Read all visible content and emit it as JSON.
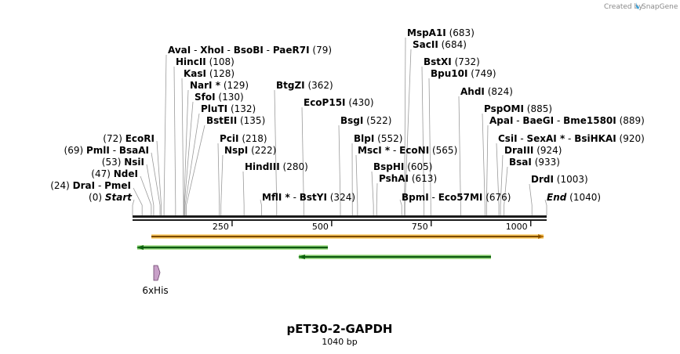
{
  "credit": {
    "text": "Created by",
    "brand": "SnapGene"
  },
  "plasmid": {
    "name": "pET30-2-GAPDH",
    "length_label": "1040 bp",
    "length": 1040
  },
  "axis": {
    "ticks": [
      250,
      500,
      750,
      1000
    ]
  },
  "colors": {
    "backbone": "#1a1a1a",
    "orange": "#f0a000",
    "green": "#1e9e1e",
    "his": "#c8a0c8"
  },
  "features": {
    "his_tag_label": "6xHis"
  },
  "site_labels": [
    {
      "segs": [
        {
          "t": "Start",
          "s": "end"
        }
      ],
      "pos_text": "(0)",
      "side": "left"
    },
    {
      "segs": [
        {
          "t": "DraI",
          "s": "en"
        },
        {
          "t": " - ",
          "s": "pos"
        },
        {
          "t": "PmeI",
          "s": "en"
        }
      ],
      "pos_text": "(24)",
      "side": "left"
    },
    {
      "segs": [
        {
          "t": "NdeI",
          "s": "en"
        }
      ],
      "pos_text": "(47)",
      "side": "left"
    },
    {
      "segs": [
        {
          "t": "NsiI",
          "s": "en"
        }
      ],
      "pos_text": "(53)",
      "side": "left"
    },
    {
      "segs": [
        {
          "t": "PmlI",
          "s": "en"
        },
        {
          "t": " - ",
          "s": "pos"
        },
        {
          "t": "BsaAI",
          "s": "en"
        }
      ],
      "pos_text": "(69)",
      "side": "left"
    },
    {
      "segs": [
        {
          "t": "EcoRI",
          "s": "en"
        }
      ],
      "pos_text": "(72)",
      "side": "left"
    },
    {
      "segs": [
        {
          "t": "AvaI",
          "s": "en"
        },
        {
          "t": " - ",
          "s": "pos"
        },
        {
          "t": "XhoI",
          "s": "en"
        },
        {
          "t": " - ",
          "s": "pos"
        },
        {
          "t": "BsoBI",
          "s": "en"
        },
        {
          "t": " - ",
          "s": "pos"
        },
        {
          "t": "PaeR7I",
          "s": "en"
        }
      ],
      "pos_text": "(79)",
      "side": "right"
    },
    {
      "segs": [
        {
          "t": "HincII",
          "s": "en"
        }
      ],
      "pos_text": "(108)",
      "side": "right"
    },
    {
      "segs": [
        {
          "t": "KasI",
          "s": "en"
        }
      ],
      "pos_text": "(128)",
      "side": "right"
    },
    {
      "segs": [
        {
          "t": "NarI *",
          "s": "en"
        }
      ],
      "pos_text": "(129)",
      "side": "right"
    },
    {
      "segs": [
        {
          "t": "SfoI",
          "s": "en"
        }
      ],
      "pos_text": "(130)",
      "side": "right"
    },
    {
      "segs": [
        {
          "t": "PluTI",
          "s": "en"
        }
      ],
      "pos_text": "(132)",
      "side": "right"
    },
    {
      "segs": [
        {
          "t": "BstEII",
          "s": "en"
        }
      ],
      "pos_text": "(135)",
      "side": "right"
    },
    {
      "segs": [
        {
          "t": "PciI",
          "s": "en"
        }
      ],
      "pos_text": "(218)",
      "side": "right"
    },
    {
      "segs": [
        {
          "t": "NspI",
          "s": "en"
        }
      ],
      "pos_text": "(222)",
      "side": "right"
    },
    {
      "segs": [
        {
          "t": "HindIII",
          "s": "en"
        }
      ],
      "pos_text": "(280)",
      "side": "right"
    },
    {
      "segs": [
        {
          "t": "MflI *",
          "s": "en"
        },
        {
          "t": " - ",
          "s": "pos"
        },
        {
          "t": "BstYI",
          "s": "en"
        }
      ],
      "pos_text": "(324)",
      "side": "right"
    },
    {
      "segs": [
        {
          "t": "BtgZI",
          "s": "en"
        }
      ],
      "pos_text": "(362)",
      "side": "right"
    },
    {
      "segs": [
        {
          "t": "EcoP15I",
          "s": "en"
        }
      ],
      "pos_text": "(430)",
      "side": "right"
    },
    {
      "segs": [
        {
          "t": "BsgI",
          "s": "en"
        }
      ],
      "pos_text": "(522)",
      "side": "right"
    },
    {
      "segs": [
        {
          "t": "BlpI",
          "s": "en"
        }
      ],
      "pos_text": "(552)",
      "side": "right"
    },
    {
      "segs": [
        {
          "t": "MscI *",
          "s": "en"
        },
        {
          "t": " - ",
          "s": "pos"
        },
        {
          "t": "EcoNI",
          "s": "en"
        }
      ],
      "pos_text": "(565)",
      "side": "right"
    },
    {
      "segs": [
        {
          "t": "BspHI",
          "s": "en"
        }
      ],
      "pos_text": "(605)",
      "side": "right"
    },
    {
      "segs": [
        {
          "t": "PshAI",
          "s": "en"
        }
      ],
      "pos_text": "(613)",
      "side": "right"
    },
    {
      "segs": [
        {
          "t": "BpmI",
          "s": "en"
        },
        {
          "t": " - ",
          "s": "pos"
        },
        {
          "t": "Eco57MI",
          "s": "en"
        }
      ],
      "pos_text": "(676)",
      "side": "right"
    },
    {
      "segs": [
        {
          "t": "MspA1I",
          "s": "en"
        }
      ],
      "pos_text": "(683)",
      "side": "right"
    },
    {
      "segs": [
        {
          "t": "SacII",
          "s": "en"
        }
      ],
      "pos_text": "(684)",
      "side": "right"
    },
    {
      "segs": [
        {
          "t": "BstXI",
          "s": "en"
        }
      ],
      "pos_text": "(732)",
      "side": "right"
    },
    {
      "segs": [
        {
          "t": "Bpu10I",
          "s": "en"
        }
      ],
      "pos_text": "(749)",
      "side": "right"
    },
    {
      "segs": [
        {
          "t": "AhdI",
          "s": "en"
        }
      ],
      "pos_text": "(824)",
      "side": "right"
    },
    {
      "segs": [
        {
          "t": "PspOMI",
          "s": "en"
        }
      ],
      "pos_text": "(885)",
      "side": "right"
    },
    {
      "segs": [
        {
          "t": "ApaI",
          "s": "en"
        },
        {
          "t": " - ",
          "s": "pos"
        },
        {
          "t": "BaeGI",
          "s": "en"
        },
        {
          "t": " - ",
          "s": "pos"
        },
        {
          "t": "Bme1580I",
          "s": "en"
        }
      ],
      "pos_text": "(889)",
      "side": "right"
    },
    {
      "segs": [
        {
          "t": "CsiI",
          "s": "en"
        },
        {
          "t": " - ",
          "s": "pos"
        },
        {
          "t": "SexAI *",
          "s": "en"
        },
        {
          "t": " - ",
          "s": "pos"
        },
        {
          "t": "BsiHKAI",
          "s": "en"
        }
      ],
      "pos_text": "(920)",
      "side": "right"
    },
    {
      "segs": [
        {
          "t": "DraIII",
          "s": "en"
        }
      ],
      "pos_text": "(924)",
      "side": "right"
    },
    {
      "segs": [
        {
          "t": "BsaI",
          "s": "en"
        }
      ],
      "pos_text": "(933)",
      "side": "right"
    },
    {
      "segs": [
        {
          "t": "DrdI",
          "s": "en"
        }
      ],
      "pos_text": "(1003)",
      "side": "right"
    },
    {
      "segs": [
        {
          "t": "End",
          "s": "end"
        }
      ],
      "pos_text": "(1040)",
      "side": "right"
    }
  ]
}
